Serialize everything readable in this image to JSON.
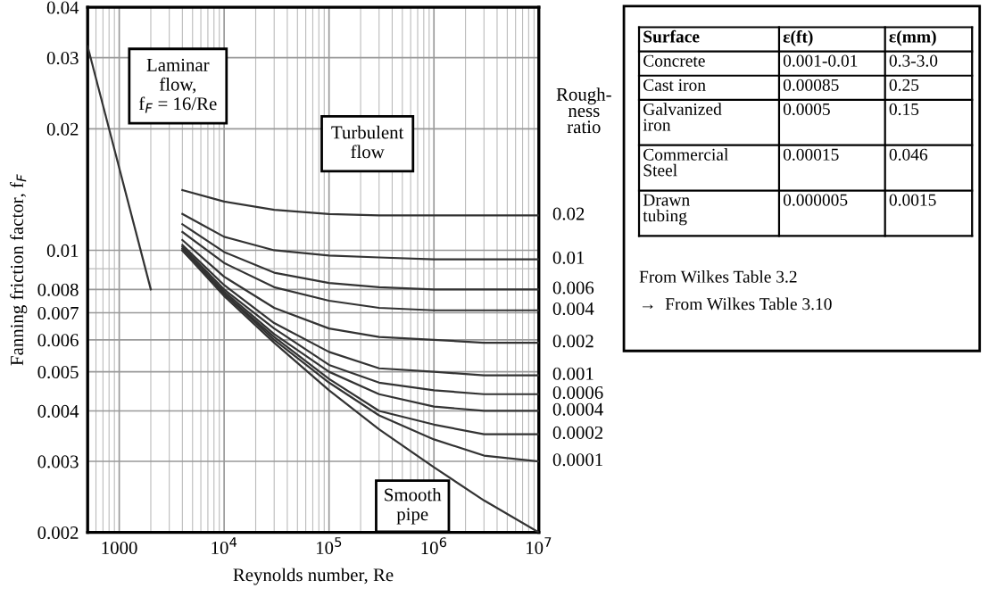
{
  "chart_data": [
    {
      "type": "line",
      "xlabel": "Reynolds number, Re",
      "ylabel": "Fanning friction factor, f$_{F}$",
      "legend_title": "Rough-\nness\nratio",
      "log": "xy",
      "grid": true,
      "legend": "right",
      "xlim": [
        500,
        10000000
      ],
      "ylim": [
        0.002,
        0.04
      ],
      "xticks": [
        1000,
        {
          "value": 10000,
          "label": "10$^{4}$"
        },
        {
          "value": 100000,
          "label": "10$^{5}$"
        },
        {
          "value": 1000000,
          "label": "10$^{6}$"
        },
        {
          "value": 10000000,
          "label": "10$^{7}$"
        }
      ],
      "yticks": [
        0.002,
        0.003,
        0.004,
        0.005,
        0.006,
        0.007,
        0.008,
        0.01,
        0.02,
        0.03,
        0.04
      ],
      "x": [
        4000,
        10000,
        30000,
        100000,
        300000,
        1000000,
        3000000,
        10000000
      ],
      "annotations": [
        "Laminar\nflow,\nf$_{F}$ = 16/Re",
        "Turbulent\nflow"
      ],
      "series": [
        {
          "name": null,
          "color": "#333333",
          "x": [
            500,
            2000
          ],
          "values": [
            0.032,
            0.008
          ]
        },
        {
          "name": "0.02",
          "color": "#333333",
          "values": [
            0.0141,
            0.0132,
            0.0126,
            0.0123,
            0.0122,
            0.0122,
            0.0122,
            0.0122
          ]
        },
        {
          "name": "0.01",
          "color": "#333333",
          "values": [
            0.0123,
            0.0108,
            0.01,
            0.0097,
            0.0096,
            0.0095,
            0.0095,
            0.0095
          ]
        },
        {
          "name": "0.006",
          "color": "#333333",
          "values": [
            0.0116,
            0.0099,
            0.0088,
            0.0083,
            0.0081,
            0.008,
            0.008,
            0.008
          ]
        },
        {
          "name": "0.004",
          "color": "#333333",
          "values": [
            0.0111,
            0.0093,
            0.0081,
            0.0075,
            0.0072,
            0.0071,
            0.0071,
            0.0071
          ]
        },
        {
          "name": "0.002",
          "color": "#333333",
          "values": [
            0.0106,
            0.0086,
            0.0072,
            0.0064,
            0.0061,
            0.006,
            0.0059,
            0.0059
          ]
        },
        {
          "name": "0.001",
          "color": "#333333",
          "values": [
            0.0103,
            0.0082,
            0.0066,
            0.0056,
            0.0051,
            0.005,
            0.0049,
            0.0049
          ]
        },
        {
          "name": "0.0006",
          "color": "#333333",
          "values": [
            0.0102,
            0.008,
            0.0064,
            0.0052,
            0.0047,
            0.0045,
            0.0044,
            0.0044
          ]
        },
        {
          "name": "0.0004",
          "color": "#333333",
          "values": [
            0.0101,
            0.0079,
            0.0062,
            0.005,
            0.0044,
            0.0041,
            0.004,
            0.004
          ]
        },
        {
          "name": "0.0002",
          "color": "#333333",
          "values": [
            0.01,
            0.0078,
            0.0061,
            0.0048,
            0.004,
            0.0037,
            0.0035,
            0.0035
          ]
        },
        {
          "name": "0.0001",
          "color": "#333333",
          "values": [
            0.01,
            0.0078,
            0.006,
            0.0047,
            0.0039,
            0.0034,
            0.0031,
            0.003
          ]
        },
        {
          "name": "Smooth\npipe",
          "color": "#333333",
          "values": [
            0.01,
            0.0077,
            0.0059,
            0.0045,
            0.0036,
            0.0029,
            0.0024,
            0.002
          ]
        }
      ]
    },
    {
      "type": "other",
      "categories": [
        "Surface",
        "ε(ft)",
        "ε(mm)"
      ],
      "y_categories": [
        "Concrete",
        "Cast iron",
        "Galvanized iron",
        "Commercial Steel",
        "Drawn tubing"
      ],
      "cell_labels": [
        [
          "0.001-0.01",
          "0.3-3.0"
        ],
        [
          "0.00085",
          "0.25"
        ],
        [
          "0.0005",
          "0.15"
        ],
        [
          "0.00015",
          "0.046"
        ],
        [
          "0.000005",
          "0.0015"
        ]
      ],
      "annotations": [
        "From Wilkes Table 3.2",
        "→  From Wilkes Table 3.10"
      ]
    }
  ]
}
